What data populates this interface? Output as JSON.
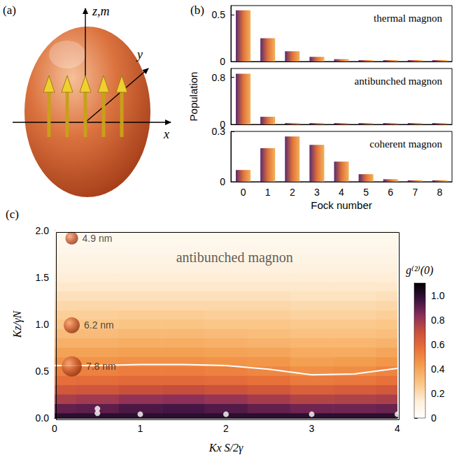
{
  "diagram": {
    "panel_label": "(a)",
    "axis_labels": {
      "z": "z,m",
      "x": "x",
      "y": "y"
    }
  },
  "chart_data": [
    {
      "type": "bar",
      "title": "thermal magnon",
      "annotations": [
        {
          "text": "(b)"
        }
      ],
      "categories": [
        "0",
        "1",
        "2",
        "3",
        "4",
        "5",
        "6",
        "7",
        "8"
      ],
      "values": [
        0.55,
        0.25,
        0.11,
        0.05,
        0.025,
        0.01,
        0.005,
        0.002,
        0.001
      ],
      "color": "#e0703a",
      "ylim": [
        0,
        0.6
      ],
      "yticks": [
        0,
        0.5
      ],
      "tick_labels": "y"
    },
    {
      "type": "bar",
      "title": "antibunched magnon",
      "ylabel": "Population",
      "categories": [
        "0",
        "1",
        "2",
        "3",
        "4",
        "5",
        "6",
        "7",
        "8"
      ],
      "values": [
        0.86,
        0.13,
        0,
        0,
        0,
        0,
        0,
        0,
        0
      ],
      "color": "#e0703a",
      "ylim": [
        0,
        0.95
      ],
      "yticks": [
        0,
        0.8
      ],
      "tick_labels": "y"
    },
    {
      "type": "bar",
      "title": "coherent magnon",
      "xlabel": "Fock number",
      "categories": [
        "0",
        "1",
        "2",
        "3",
        "4",
        "5",
        "6",
        "7",
        "8"
      ],
      "values": [
        0.07,
        0.2,
        0.27,
        0.22,
        0.12,
        0.045,
        0.015,
        0.003,
        0.001
      ],
      "color": "#e0703a",
      "ylim": [
        0,
        0.3
      ],
      "yticks": [
        0,
        0.3
      ]
    },
    {
      "type": "heatmap",
      "xlabel": "Kx S/2γ",
      "ylabel": "Kz/γN",
      "annotations": [
        {
          "text": "(c)"
        },
        {
          "text": "antibunched magnon",
          "x": 2.1,
          "y": 1.72
        }
      ],
      "x": [
        0,
        0.5,
        1,
        1.5,
        2,
        2.5,
        3,
        3.5,
        4
      ],
      "y": [
        0,
        0.1,
        0.2,
        0.3,
        0.4,
        0.5,
        0.6,
        0.7,
        0.8,
        0.9,
        1.0,
        1.1,
        1.2,
        1.3,
        1.4,
        1.5,
        1.6,
        1.7,
        1.8,
        1.9,
        2.0
      ],
      "values": [
        [
          1.0,
          1.0,
          1.0,
          1.0,
          1.0,
          1.0,
          1.0,
          1.0,
          1.0
        ],
        [
          0.9,
          0.91,
          0.94,
          0.95,
          0.93,
          0.9,
          0.88,
          0.88,
          0.89
        ],
        [
          0.77,
          0.79,
          0.82,
          0.83,
          0.81,
          0.78,
          0.75,
          0.76,
          0.77
        ],
        [
          0.67,
          0.68,
          0.7,
          0.71,
          0.69,
          0.67,
          0.64,
          0.65,
          0.67
        ],
        [
          0.58,
          0.59,
          0.6,
          0.6,
          0.59,
          0.57,
          0.54,
          0.55,
          0.57
        ],
        [
          0.52,
          0.52,
          0.53,
          0.53,
          0.52,
          0.5,
          0.47,
          0.48,
          0.51
        ],
        [
          0.46,
          0.46,
          0.47,
          0.47,
          0.46,
          0.45,
          0.42,
          0.43,
          0.45
        ],
        [
          0.41,
          0.41,
          0.42,
          0.42,
          0.41,
          0.4,
          0.38,
          0.38,
          0.4
        ],
        [
          0.36,
          0.36,
          0.37,
          0.37,
          0.36,
          0.35,
          0.34,
          0.34,
          0.35
        ],
        [
          0.32,
          0.32,
          0.33,
          0.33,
          0.32,
          0.31,
          0.3,
          0.3,
          0.31
        ],
        [
          0.28,
          0.28,
          0.29,
          0.29,
          0.28,
          0.28,
          0.27,
          0.27,
          0.28
        ],
        [
          0.25,
          0.25,
          0.26,
          0.26,
          0.25,
          0.25,
          0.24,
          0.24,
          0.25
        ],
        [
          0.22,
          0.22,
          0.22,
          0.22,
          0.22,
          0.22,
          0.21,
          0.21,
          0.22
        ],
        [
          0.19,
          0.19,
          0.19,
          0.19,
          0.19,
          0.19,
          0.18,
          0.18,
          0.19
        ],
        [
          0.16,
          0.16,
          0.16,
          0.16,
          0.16,
          0.16,
          0.16,
          0.16,
          0.16
        ],
        [
          0.14,
          0.14,
          0.14,
          0.14,
          0.14,
          0.14,
          0.14,
          0.14,
          0.14
        ],
        [
          0.12,
          0.12,
          0.12,
          0.12,
          0.12,
          0.12,
          0.12,
          0.12,
          0.12
        ],
        [
          0.1,
          0.1,
          0.1,
          0.1,
          0.1,
          0.1,
          0.1,
          0.1,
          0.1
        ],
        [
          0.08,
          0.08,
          0.08,
          0.08,
          0.08,
          0.08,
          0.08,
          0.08,
          0.08
        ],
        [
          0.07,
          0.07,
          0.07,
          0.07,
          0.07,
          0.07,
          0.07,
          0.07,
          0.07
        ],
        [
          0.06,
          0.06,
          0.06,
          0.06,
          0.06,
          0.06,
          0.06,
          0.06,
          0.06
        ]
      ],
      "xlim": [
        0,
        4
      ],
      "xticks": [
        0,
        1,
        2,
        3,
        4
      ],
      "ylim": [
        0,
        2
      ],
      "yticks": [
        {
          "value": 0,
          "label": "0.0"
        },
        {
          "value": 0.5,
          "label": "0.5"
        },
        {
          "value": 1,
          "label": "1.0"
        },
        {
          "value": 1.5,
          "label": "1.5"
        },
        {
          "value": 2,
          "label": "2.0"
        }
      ],
      "colorbar": {
        "label": "g⁽²⁾(0)",
        "range": [
          0,
          1.1
        ],
        "ticks": [
          0,
          0.2,
          0.4,
          0.6,
          0.8,
          {
            "value": 1,
            "label": "1.0"
          }
        ]
      },
      "contour": {
        "x": [
          0,
          0.5,
          1,
          1.5,
          2,
          2.5,
          3,
          3.5,
          4
        ],
        "y": [
          0.56,
          0.56,
          0.57,
          0.57,
          0.56,
          0.52,
          0.46,
          0.47,
          0.53
        ],
        "color": "#ffffff"
      },
      "points": {
        "x": [
          0.5,
          0.5,
          1,
          2,
          3,
          4
        ],
        "y": [
          0.1,
          0.05,
          0.04,
          0.04,
          0.04,
          0.04
        ],
        "color": "#ffffff"
      },
      "spheres": [
        {
          "x": 0.2,
          "y": 1.92,
          "size": 4.9,
          "label": "4.9 nm"
        },
        {
          "x": 0.2,
          "y": 0.99,
          "size": 6.2,
          "label": "6.2 nm"
        },
        {
          "x": 0.2,
          "y": 0.55,
          "size": 7.8,
          "label": "7.8 nm"
        }
      ]
    }
  ]
}
